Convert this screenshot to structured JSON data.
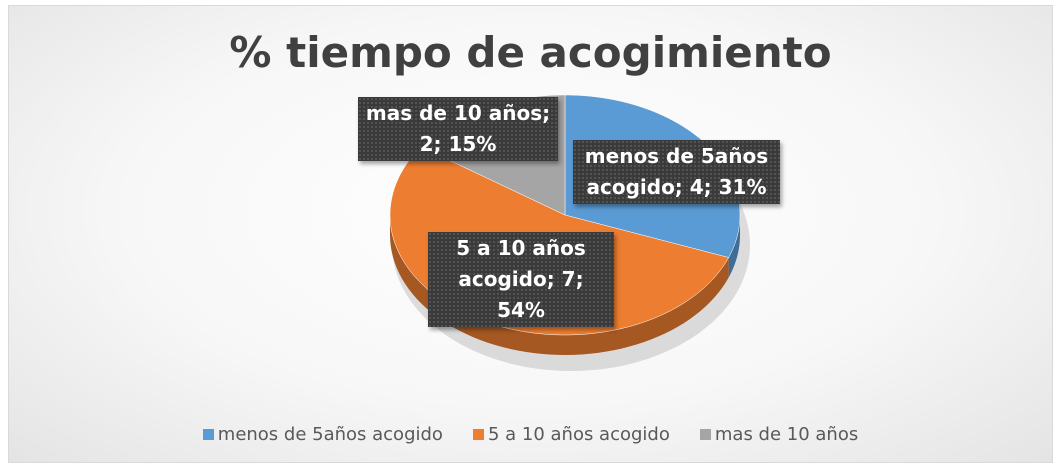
{
  "chart_data": {
    "type": "pie3d",
    "title": "% tiempo de acogimiento",
    "categories": [
      "menos de 5años acogido",
      "5 a 10 años acogido",
      "mas de 10 años"
    ],
    "values": [
      4,
      7,
      2
    ],
    "value_labels": [
      "menos de 5años acogido; 4; 31%",
      "5 a 10 años acogido; 7; 54%",
      "mas de 10 años; 2; 15%"
    ],
    "colors": [
      "#5b9bd5",
      "#ed7d31",
      "#a5a5a5"
    ],
    "legend": "bottom"
  }
}
